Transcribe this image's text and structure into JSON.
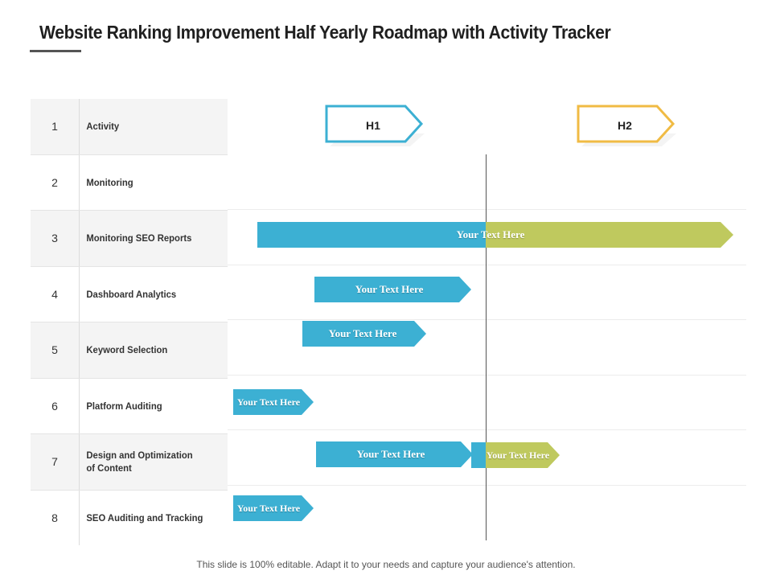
{
  "title": "Website Ranking Improvement Half Yearly Roadmap with Activity Tracker",
  "rows": [
    {
      "num": "1",
      "label": "Activity"
    },
    {
      "num": "2",
      "label": "Monitoring"
    },
    {
      "num": "3",
      "label": "Monitoring SEO Reports"
    },
    {
      "num": "4",
      "label": "Dashboard Analytics"
    },
    {
      "num": "5",
      "label": "Keyword Selection"
    },
    {
      "num": "6",
      "label": "Platform Auditing"
    },
    {
      "num": "7",
      "label": "Design and Optimization of Content"
    },
    {
      "num": "8",
      "label": "SEO Auditing and Tracking"
    }
  ],
  "halves": [
    {
      "label": "H1",
      "color": "#3cb0d3"
    },
    {
      "label": "H2",
      "color": "#f0bb44"
    }
  ],
  "bars": {
    "r3": "Your Text Here",
    "r4": "Your Text Here",
    "r5": "Your Text Here",
    "r6": "Your Text Here",
    "r7a": "Your Text Here",
    "r7b": "Your Text Here",
    "r8": "Your Text Here"
  },
  "colors": {
    "blue": "#3cb0d3",
    "green": "#bfc95e",
    "yellow": "#f0bb44"
  },
  "footer": "This slide is 100% editable. Adapt it to your needs and capture your audience's attention."
}
